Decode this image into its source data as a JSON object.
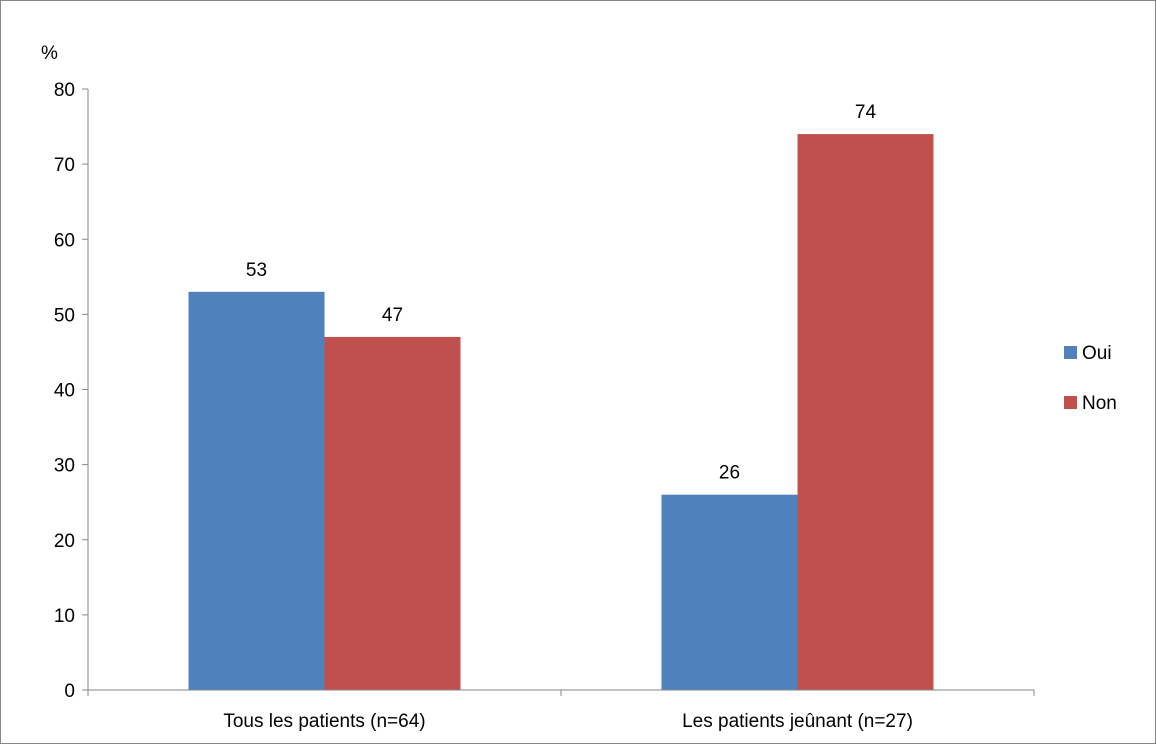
{
  "chart_data": {
    "type": "bar",
    "ylabel": "%",
    "ylim": [
      0,
      80
    ],
    "yticks": [
      0,
      10,
      20,
      30,
      40,
      50,
      60,
      70,
      80
    ],
    "categories": [
      "Tous les patients (n=64)",
      "Les patients jeûnant (n=27)"
    ],
    "series": [
      {
        "name": "Oui",
        "values": [
          53,
          26
        ],
        "color": "#4F81BD"
      },
      {
        "name": "Non",
        "values": [
          47,
          74
        ],
        "color": "#C0504D"
      }
    ],
    "data_labels": true,
    "grid": false,
    "legend": "right"
  }
}
